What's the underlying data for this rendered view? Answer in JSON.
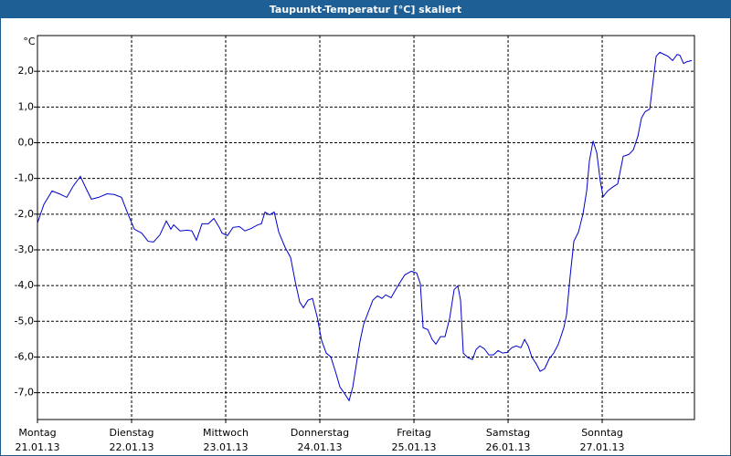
{
  "chart_data": {
    "type": "line",
    "title": "Taupunkt-Temperatur [°C] skaliert",
    "y_label": "°C",
    "series": [
      {
        "color": "#0000cc",
        "x": [
          0,
          0.068,
          0.155,
          0.233,
          0.311,
          0.379,
          0.456,
          0.505,
          0.573,
          0.65,
          0.738,
          0.816,
          0.893,
          0.961,
          1.029,
          1.107,
          1.175,
          1.233,
          1.301,
          1.369,
          1.417,
          1.447,
          1.515,
          1.592,
          1.641,
          1.689,
          1.748,
          1.816,
          1.874,
          1.932,
          1.961,
          2.019,
          2.078,
          2.146,
          2.204,
          2.272,
          2.34,
          2.379,
          2.417,
          2.466,
          2.515,
          2.563,
          2.631,
          2.689,
          2.738,
          2.786,
          2.825,
          2.874,
          2.922,
          2.971,
          3.019,
          3.068,
          3.117,
          3.165,
          3.214,
          3.262,
          3.311,
          3.35,
          3.388,
          3.427,
          3.466,
          3.515,
          3.563,
          3.612,
          3.66,
          3.699,
          3.757,
          3.806,
          3.854,
          3.903,
          3.971,
          4.029,
          4.068,
          4.097,
          4.146,
          4.194,
          4.233,
          4.282,
          4.33,
          4.379,
          4.427,
          4.466,
          4.495,
          4.524,
          4.573,
          4.621,
          4.66,
          4.699,
          4.748,
          4.796,
          4.845,
          4.893,
          4.942,
          4.99,
          5.039,
          5.087,
          5.136,
          5.175,
          5.214,
          5.252,
          5.301,
          5.34,
          5.388,
          5.437,
          5.485,
          5.534,
          5.592,
          5.621,
          5.66,
          5.699,
          5.748,
          5.796,
          5.835,
          5.864,
          5.903,
          5.942,
          5.981,
          6.01,
          6.058,
          6.107,
          6.165,
          6.223,
          6.282,
          6.33,
          6.379,
          6.417,
          6.456,
          6.505,
          6.534,
          6.573,
          6.612,
          6.66,
          6.699,
          6.748,
          6.796,
          6.825,
          6.864,
          6.903,
          6.951
        ],
        "values": [
          -2.25,
          -1.73,
          -1.35,
          -1.43,
          -1.53,
          -1.22,
          -0.94,
          -1.22,
          -1.58,
          -1.53,
          -1.43,
          -1.45,
          -1.53,
          -1.99,
          -2.42,
          -2.53,
          -2.76,
          -2.78,
          -2.58,
          -2.19,
          -2.42,
          -2.3,
          -2.47,
          -2.45,
          -2.47,
          -2.73,
          -2.27,
          -2.27,
          -2.12,
          -2.37,
          -2.53,
          -2.6,
          -2.37,
          -2.35,
          -2.47,
          -2.4,
          -2.3,
          -2.27,
          -1.94,
          -2.02,
          -1.94,
          -2.5,
          -2.93,
          -3.21,
          -3.88,
          -4.46,
          -4.62,
          -4.41,
          -4.36,
          -4.87,
          -5.54,
          -5.89,
          -6.0,
          -6.4,
          -6.84,
          -7.02,
          -7.22,
          -6.84,
          -6.2,
          -5.56,
          -5.08,
          -4.74,
          -4.41,
          -4.29,
          -4.36,
          -4.26,
          -4.34,
          -4.11,
          -3.9,
          -3.7,
          -3.6,
          -3.65,
          -3.95,
          -5.18,
          -5.23,
          -5.51,
          -5.64,
          -5.43,
          -5.43,
          -4.92,
          -4.11,
          -4.01,
          -4.41,
          -5.89,
          -6.02,
          -6.07,
          -5.79,
          -5.69,
          -5.77,
          -5.94,
          -5.94,
          -5.82,
          -5.89,
          -5.87,
          -5.74,
          -5.69,
          -5.74,
          -5.51,
          -5.69,
          -6.0,
          -6.2,
          -6.4,
          -6.33,
          -6.05,
          -5.89,
          -5.64,
          -5.18,
          -4.82,
          -3.72,
          -2.76,
          -2.5,
          -1.99,
          -1.35,
          -0.51,
          0.05,
          -0.28,
          -1.1,
          -1.51,
          -1.35,
          -1.25,
          -1.15,
          -0.38,
          -0.33,
          -0.2,
          0.18,
          0.69,
          0.87,
          0.94,
          1.58,
          2.42,
          2.53,
          2.47,
          2.42,
          2.3,
          2.47,
          2.45,
          2.22,
          2.27,
          2.3
        ]
      }
    ],
    "xlim": [
      0,
      6.98
    ],
    "xticks": [
      {
        "value": 0,
        "label": "Montag",
        "date": "21.01.13"
      },
      {
        "value": 1,
        "label": "Dienstag",
        "date": "22.01.13"
      },
      {
        "value": 2,
        "label": "Mittwoch",
        "date": "23.01.13"
      },
      {
        "value": 3,
        "label": "Donnerstag",
        "date": "24.01.13"
      },
      {
        "value": 4,
        "label": "Freitag",
        "date": "25.01.13"
      },
      {
        "value": 5,
        "label": "Samstag",
        "date": "26.01.13"
      },
      {
        "value": 6,
        "label": "Sonntag",
        "date": "27.01.13"
      }
    ],
    "ylim": [
      -7.75,
      3.0
    ],
    "yticks": [
      {
        "value": 2,
        "label": "2,0"
      },
      {
        "value": 1,
        "label": "1,0"
      },
      {
        "value": 0,
        "label": "0,0"
      },
      {
        "value": -1,
        "label": "-1,0"
      },
      {
        "value": -2,
        "label": "-2,0"
      },
      {
        "value": -3,
        "label": "-3,0"
      },
      {
        "value": -4,
        "label": "-4,0"
      },
      {
        "value": -5,
        "label": "-5,0"
      },
      {
        "value": -6,
        "label": "-6,0"
      },
      {
        "value": -7,
        "label": "-7,0"
      }
    ],
    "grid": true
  }
}
